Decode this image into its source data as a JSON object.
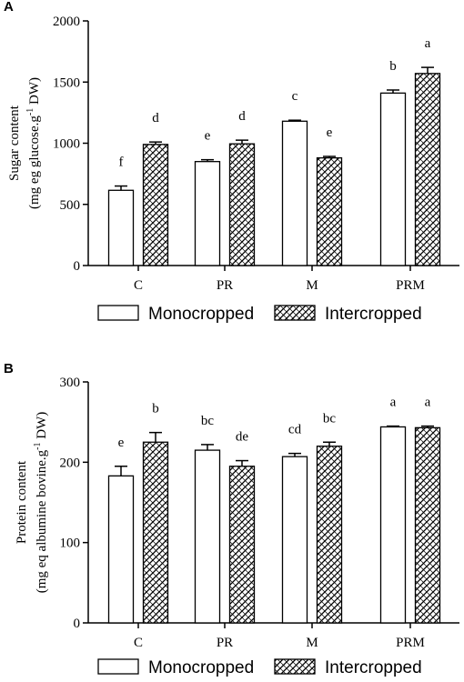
{
  "chart_data": [
    {
      "panel_label": "A",
      "type": "bar",
      "categories": [
        "C",
        "PR",
        "M",
        "PRM"
      ],
      "ylabel_line1": "Sugar content",
      "ylabel_line2": "(mg eg glucose.g",
      "ylabel_sup": "-1",
      "ylabel_tail": " DW)",
      "ylim": [
        0,
        2000
      ],
      "yticks": [
        0,
        500,
        1000,
        1500,
        2000
      ],
      "grid": false,
      "legend_position": "bottom",
      "series": [
        {
          "name": "Monocropped",
          "pattern": "plain",
          "values": [
            615,
            850,
            1180,
            1410
          ],
          "errors": [
            35,
            15,
            8,
            25
          ],
          "letters": [
            "f",
            "e",
            "c",
            "b"
          ]
        },
        {
          "name": "Intercropped",
          "pattern": "hatched",
          "values": [
            990,
            995,
            880,
            1570
          ],
          "errors": [
            20,
            30,
            12,
            50
          ],
          "letters": [
            "d",
            "d",
            "e",
            "a"
          ]
        }
      ]
    },
    {
      "panel_label": "B",
      "type": "bar",
      "categories": [
        "C",
        "PR",
        "M",
        "PRM"
      ],
      "ylabel_line1": "Protein content",
      "ylabel_line2": "(mg eq albumine bovine.g",
      "ylabel_sup": "-1",
      "ylabel_tail": " DW)",
      "ylim": [
        0,
        300
      ],
      "yticks": [
        0,
        100,
        200,
        300
      ],
      "grid": false,
      "legend_position": "bottom",
      "series": [
        {
          "name": "Monocropped",
          "pattern": "plain",
          "values": [
            183,
            215,
            207,
            244
          ],
          "errors": [
            12,
            7,
            4,
            1
          ],
          "letters": [
            "e",
            "bc",
            "cd",
            "a"
          ]
        },
        {
          "name": "Intercropped",
          "pattern": "hatched",
          "values": [
            225,
            195,
            220,
            243
          ],
          "errors": [
            12,
            7,
            5,
            2
          ],
          "letters": [
            "b",
            "de",
            "bc",
            "a"
          ]
        }
      ]
    }
  ]
}
